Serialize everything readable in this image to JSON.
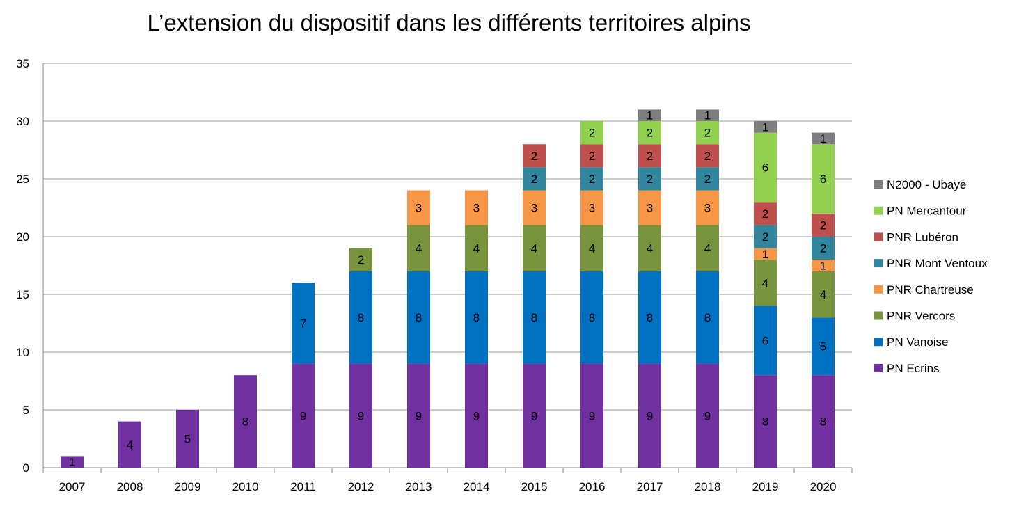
{
  "chart_data": {
    "type": "bar",
    "stacked": true,
    "title": "L’extension du dispositif dans les différents territoires alpins",
    "xlabel": "",
    "ylabel": "",
    "ylim": [
      0,
      35
    ],
    "yticks": [
      0,
      5,
      10,
      15,
      20,
      25,
      30,
      35
    ],
    "grid": true,
    "legend_position": "right",
    "categories": [
      "2007",
      "2008",
      "2009",
      "2010",
      "2011",
      "2012",
      "2013",
      "2014",
      "2015",
      "2016",
      "2017",
      "2018",
      "2019",
      "2020"
    ],
    "series": [
      {
        "name": "PN Ecrins",
        "color": "#7030a0",
        "values": [
          1,
          4,
          5,
          8,
          9,
          9,
          9,
          9,
          9,
          9,
          9,
          9,
          8,
          8
        ]
      },
      {
        "name": "PN Vanoise",
        "color": "#0070c0",
        "values": [
          0,
          0,
          0,
          0,
          7,
          8,
          8,
          8,
          8,
          8,
          8,
          8,
          6,
          5
        ]
      },
      {
        "name": "PNR Vercors",
        "color": "#77933c",
        "values": [
          0,
          0,
          0,
          0,
          0,
          2,
          4,
          4,
          4,
          4,
          4,
          4,
          4,
          4
        ]
      },
      {
        "name": "PNR Chartreuse",
        "color": "#f79646",
        "values": [
          0,
          0,
          0,
          0,
          0,
          0,
          3,
          3,
          3,
          3,
          3,
          3,
          1,
          1
        ]
      },
      {
        "name": "PNR Mont Ventoux",
        "color": "#31859c",
        "values": [
          0,
          0,
          0,
          0,
          0,
          0,
          0,
          0,
          2,
          2,
          2,
          2,
          2,
          2
        ]
      },
      {
        "name": "PNR Lubéron",
        "color": "#c0504d",
        "values": [
          0,
          0,
          0,
          0,
          0,
          0,
          0,
          0,
          2,
          2,
          2,
          2,
          2,
          2
        ]
      },
      {
        "name": "PN Mercantour",
        "color": "#92d050",
        "values": [
          0,
          0,
          0,
          0,
          0,
          0,
          0,
          0,
          0,
          2,
          2,
          2,
          6,
          6
        ]
      },
      {
        "name": "N2000 - Ubaye",
        "color": "#7f7f7f",
        "values": [
          0,
          0,
          0,
          0,
          0,
          0,
          0,
          0,
          0,
          0,
          1,
          1,
          1,
          1
        ]
      }
    ]
  }
}
